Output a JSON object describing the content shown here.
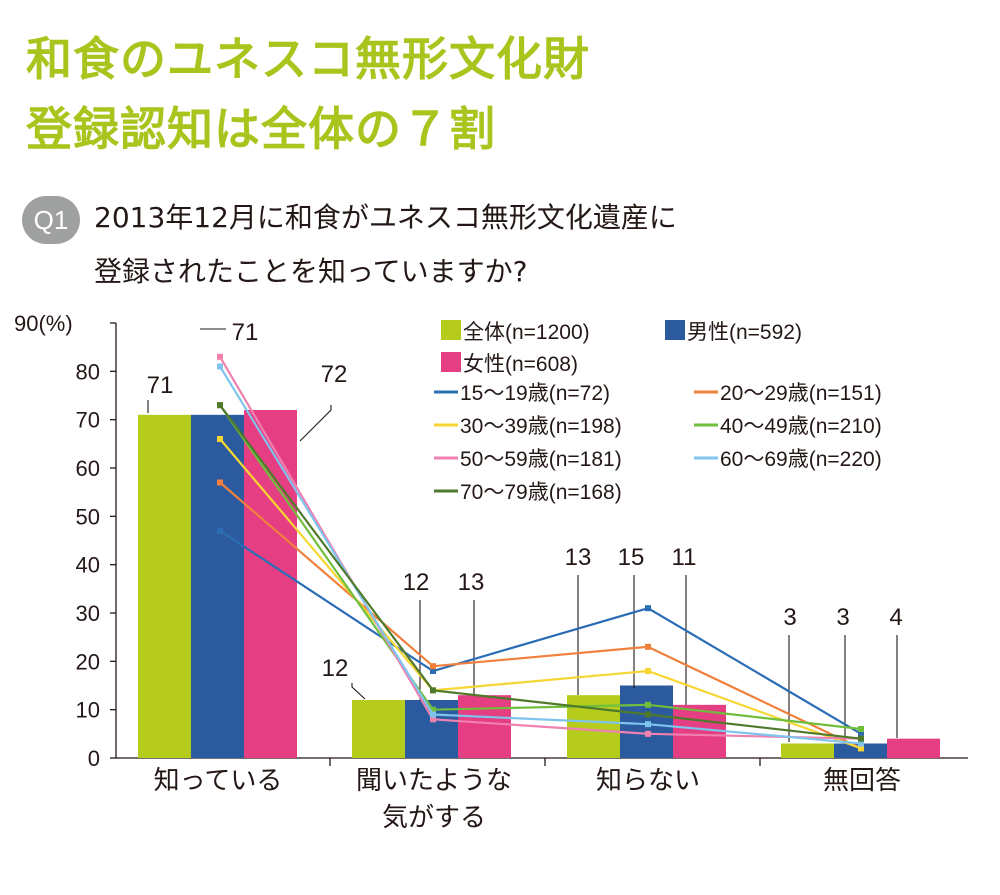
{
  "title": {
    "line1": "和食のユネスコ無形文化財",
    "line2": "登録認知は全体の７割"
  },
  "question": {
    "badge": "Q1",
    "line1": "2013年12月に和食がユネスコ無形文化遺産に",
    "line2": "登録されたことを知っていますか?"
  },
  "chart_data": {
    "type": "bar",
    "ylabel": "(%)",
    "ylim": [
      0,
      90
    ],
    "yticks": [
      0,
      10,
      20,
      30,
      40,
      50,
      60,
      70,
      80,
      90
    ],
    "categories": [
      "知っている",
      "聞いたような\n気がする",
      "知らない",
      "無回答"
    ],
    "bar_series": [
      {
        "name": "全体(n=1200)",
        "color": "#b5cc1d",
        "values": [
          71,
          12,
          13,
          3
        ]
      },
      {
        "name": "男性(n=592)",
        "color": "#2c5a9e",
        "values": [
          71,
          12,
          15,
          3
        ]
      },
      {
        "name": "女性(n=608)",
        "color": "#e63e82",
        "values": [
          72,
          13,
          11,
          4
        ]
      }
    ],
    "line_series": [
      {
        "name": "15〜19歳(n=72)",
        "color": "#2a6db5",
        "values": [
          47,
          18,
          31,
          5
        ]
      },
      {
        "name": "20〜29歳(n=151)",
        "color": "#f0803c",
        "values": [
          57,
          19,
          23,
          2
        ]
      },
      {
        "name": "30〜39歳(n=198)",
        "color": "#f7d633",
        "values": [
          66,
          14,
          18,
          2
        ]
      },
      {
        "name": "40〜49歳(n=210)",
        "color": "#6fbe3c",
        "values": [
          73,
          10,
          11,
          6
        ]
      },
      {
        "name": "50〜59歳(n=181)",
        "color": "#f080b0",
        "values": [
          83,
          8,
          5,
          4
        ]
      },
      {
        "name": "60〜69歳(n=220)",
        "color": "#7ec4ec",
        "values": [
          81,
          9,
          7,
          3
        ]
      },
      {
        "name": "70〜79歳(n=168)",
        "color": "#4f7a2c",
        "values": [
          73,
          14,
          9,
          4
        ]
      }
    ]
  }
}
